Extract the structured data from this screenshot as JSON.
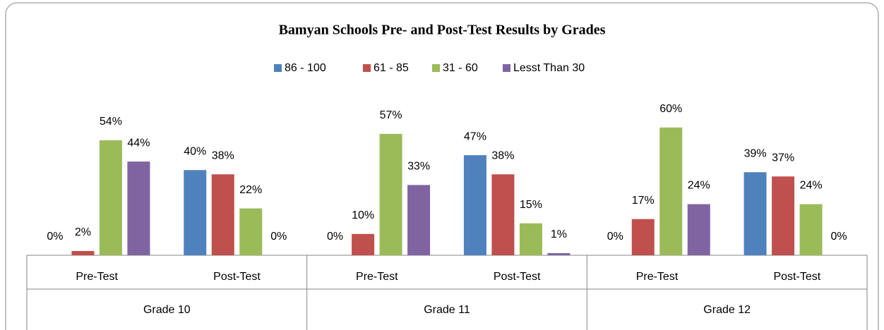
{
  "chart_data": {
    "type": "bar",
    "title": "Bamyan Schools Pre- and Post-Test Results by Grades",
    "categories": [
      "Pre-Test",
      "Post-Test",
      "Pre-Test",
      "Post-Test",
      "Pre-Test",
      "Post-Test"
    ],
    "groups": [
      "Grade 10",
      "Grade 11",
      "Grade 12"
    ],
    "series": [
      {
        "name": "86 - 100",
        "color": "#4f81bd",
        "values": [
          0,
          40,
          0,
          47,
          0,
          39
        ],
        "value_labels": [
          "0%",
          "40%",
          "0%",
          "47%",
          "0%",
          "39%"
        ]
      },
      {
        "name": "61 - 85",
        "color": "#c0504d",
        "values": [
          2,
          38,
          10,
          38,
          17,
          37
        ],
        "value_labels": [
          "2%",
          "38%",
          "10%",
          "38%",
          "17%",
          "37%"
        ]
      },
      {
        "name": "31 - 60",
        "color": "#9bbb59",
        "values": [
          54,
          22,
          57,
          15,
          60,
          24
        ],
        "value_labels": [
          "54%",
          "22%",
          "57%",
          "15%",
          "60%",
          "24%"
        ]
      },
      {
        "name": "Lesst Than 30",
        "color": "#8064a2",
        "values": [
          44,
          0,
          33,
          1,
          24,
          0
        ],
        "value_labels": [
          "44%",
          "0%",
          "33%",
          "1%",
          "24%",
          "0%"
        ]
      }
    ],
    "legend": "top"
  }
}
